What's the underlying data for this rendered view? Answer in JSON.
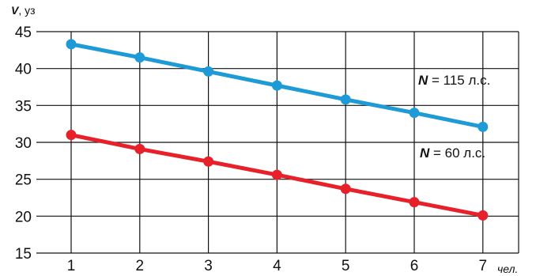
{
  "chart_data": {
    "type": "line",
    "y_axis_title": "V, уз",
    "x_unit_label": "чел.",
    "x": [
      1,
      2,
      3,
      4,
      5,
      6,
      7
    ],
    "xlim": [
      0,
      7.5
    ],
    "ylim": [
      15,
      45
    ],
    "y_ticks": [
      15,
      20,
      25,
      30,
      35,
      40,
      45
    ],
    "grid": true,
    "series": [
      {
        "name": "N = 115 л.с.",
        "label_prefix": "N",
        "label_suffix": " = 115 л.с.",
        "color": "#1E9BD7",
        "values": [
          43.3,
          41.5,
          39.6,
          37.7,
          35.8,
          34.0,
          32.1
        ]
      },
      {
        "name": "N = 60 л.с.",
        "label_prefix": "N",
        "label_suffix": " = 60 л.с.",
        "color": "#E8202A",
        "values": [
          31.0,
          29.1,
          27.4,
          25.6,
          23.7,
          21.9,
          20.1
        ]
      }
    ]
  }
}
